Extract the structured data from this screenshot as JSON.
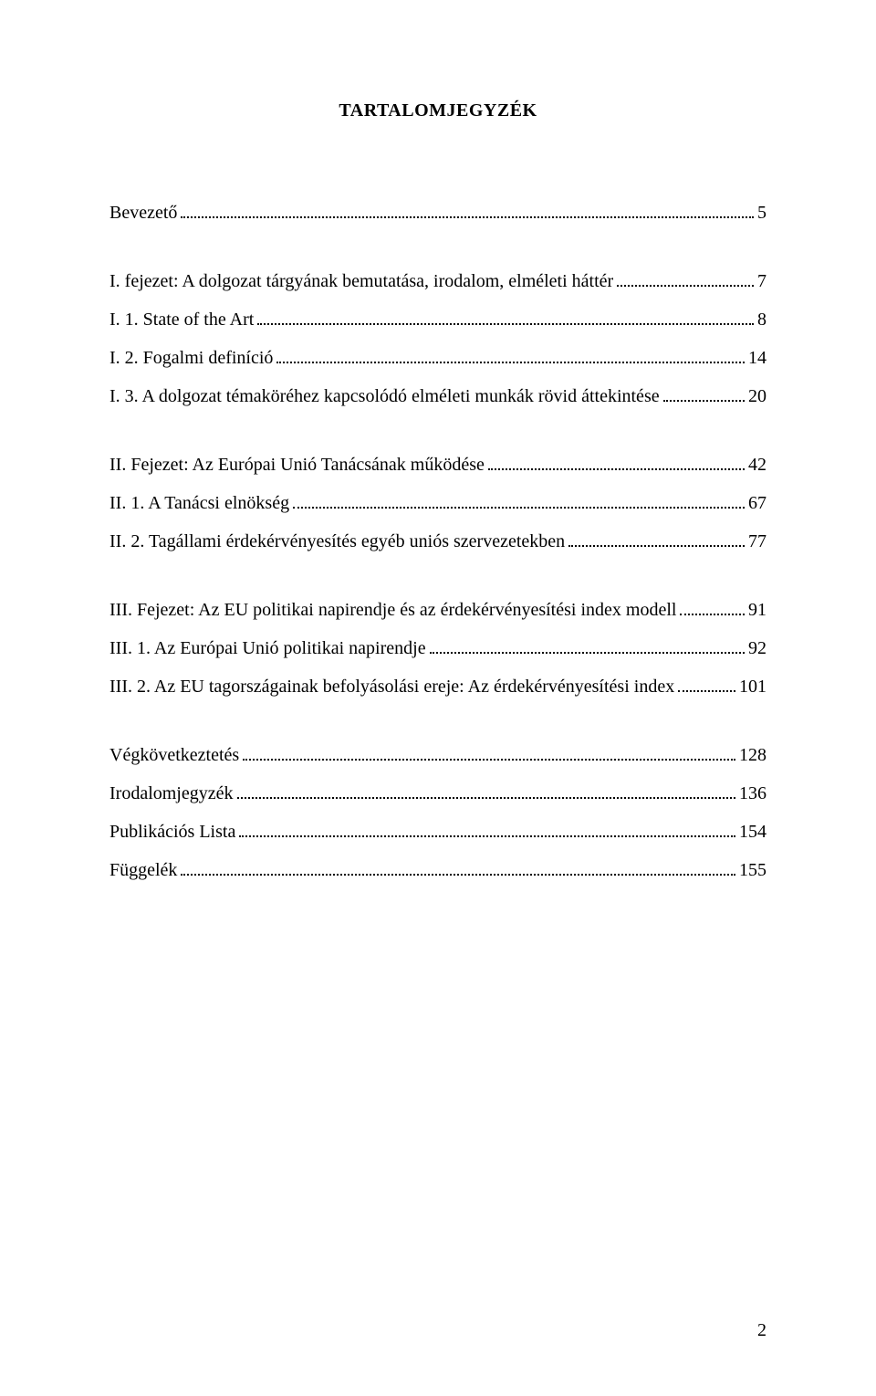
{
  "title": "TARTALOMJEGYZÉK",
  "entries": [
    {
      "label": "Bevezető",
      "page": "5",
      "gapAfter": true
    },
    {
      "label": "I. fejezet: A dolgozat tárgyának bemutatása, irodalom, elméleti háttér",
      "page": "7",
      "gapAfter": false
    },
    {
      "label": "I. 1. State of the Art",
      "page": "8",
      "gapAfter": false
    },
    {
      "label": "I. 2. Fogalmi definíció",
      "page": "14",
      "gapAfter": false
    },
    {
      "label": "I. 3. A dolgozat témaköréhez kapcsolódó elméleti munkák rövid áttekintése",
      "page": "20",
      "gapAfter": true
    },
    {
      "label": "II. Fejezet: Az Európai Unió Tanácsának működése",
      "page": "42",
      "gapAfter": false
    },
    {
      "label": "II. 1. A Tanácsi elnökség",
      "page": "67",
      "gapAfter": false
    },
    {
      "label": "II. 2. Tagállami érdekérvényesítés egyéb uniós szervezetekben",
      "page": "77",
      "gapAfter": true
    },
    {
      "label": "III. Fejezet: Az EU politikai napirendje és az érdekérvényesítési index modell",
      "page": "91",
      "gapAfter": false
    },
    {
      "label": "III. 1. Az Európai Unió politikai napirendje",
      "page": "92",
      "gapAfter": false
    },
    {
      "label": "III. 2. Az EU tagországainak befolyásolási ereje: Az érdekérvényesítési index",
      "page": "101",
      "gapAfter": true
    },
    {
      "label": "Végkövetkeztetés",
      "page": "128",
      "gapAfter": false
    },
    {
      "label": "Irodalomjegyzék",
      "page": "136",
      "gapAfter": false
    },
    {
      "label": "Publikációs Lista",
      "page": "154",
      "gapAfter": false
    },
    {
      "label": "Függelék",
      "page": "155",
      "gapAfter": false
    }
  ],
  "footerPage": "2"
}
